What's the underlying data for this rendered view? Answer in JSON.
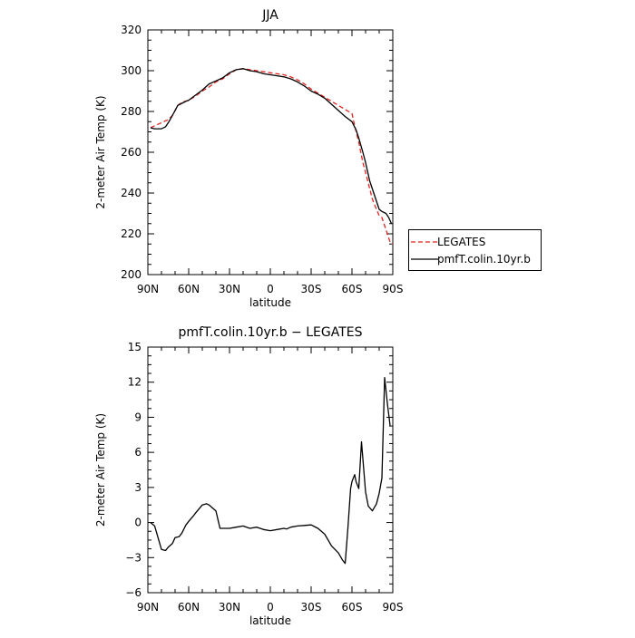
{
  "chart_data": [
    {
      "type": "line",
      "title": "JJA",
      "xlabel": "latitude",
      "ylabel": "2-meter Air Temp (K)",
      "xlim": [
        90,
        -90
      ],
      "ylim": [
        200,
        320
      ],
      "x_ticks": [
        90,
        60,
        30,
        0,
        -30,
        -60,
        -90
      ],
      "x_tick_labels": [
        "90N",
        "60N",
        "30N",
        "0",
        "30S",
        "60S",
        "90S"
      ],
      "y_ticks": [
        200,
        220,
        240,
        260,
        280,
        300,
        320
      ],
      "y_tick_labels": [
        "200",
        "220",
        "240",
        "260",
        "280",
        "300",
        "320"
      ],
      "legend_position": "right",
      "series": [
        {
          "name": "LEGATES",
          "color": "#e8231e",
          "dash": "dashed",
          "x": [
            88,
            85,
            80,
            75,
            72,
            70,
            68,
            65,
            60,
            55,
            50,
            45,
            40,
            35,
            30,
            25,
            20,
            15,
            10,
            5,
            0,
            -5,
            -10,
            -15,
            -20,
            -25,
            -30,
            -35,
            -40,
            -45,
            -50,
            -55,
            -60,
            -62,
            -65,
            -68,
            -70,
            -75,
            -78,
            -80,
            -82,
            -85,
            -88,
            -90
          ],
          "y": [
            272,
            273,
            274.5,
            276,
            278,
            280.5,
            283,
            284.5,
            285.5,
            287.5,
            290,
            292,
            294.5,
            296,
            298.5,
            300.5,
            301,
            300.5,
            300,
            299.5,
            299,
            298.5,
            298,
            297,
            295.5,
            293.5,
            291,
            289,
            287,
            285,
            283,
            281,
            279,
            273,
            265,
            255,
            250,
            237,
            232,
            229,
            228,
            222,
            216,
            215
          ]
        },
        {
          "name": "pmfT.colin.10yr.b",
          "color": "#000000",
          "dash": "solid",
          "x": [
            88,
            85,
            80,
            77,
            75,
            72,
            70,
            68,
            65,
            62,
            60,
            55,
            50,
            45,
            40,
            35,
            30,
            25,
            20,
            15,
            10,
            5,
            0,
            -5,
            -10,
            -15,
            -20,
            -25,
            -30,
            -35,
            -40,
            -45,
            -50,
            -55,
            -60,
            -63,
            -65,
            -68,
            -70,
            -73,
            -75,
            -78,
            -80,
            -82,
            -85,
            -87,
            -89
          ],
          "y": [
            272,
            271.5,
            271.5,
            272.5,
            274.5,
            278,
            280.5,
            283,
            284,
            285,
            285.5,
            288,
            290.5,
            293.5,
            295,
            296.5,
            299,
            300.5,
            301,
            300,
            299.5,
            298.5,
            298,
            297.5,
            297,
            296,
            294.5,
            292.5,
            290,
            288.5,
            286.5,
            283.5,
            280.5,
            277.5,
            275,
            271,
            267,
            260,
            255,
            246,
            242,
            236,
            232,
            231,
            230,
            228,
            225
          ]
        }
      ]
    },
    {
      "type": "line",
      "title": "pmfT.colin.10yr.b − LEGATES",
      "xlabel": "latitude",
      "ylabel": "2-meter Air Temp (K)",
      "xlim": [
        90,
        -90
      ],
      "ylim": [
        -6,
        15
      ],
      "x_ticks": [
        90,
        60,
        30,
        0,
        -30,
        -60,
        -90
      ],
      "x_tick_labels": [
        "90N",
        "60N",
        "30N",
        "0",
        "30S",
        "60S",
        "90S"
      ],
      "y_ticks": [
        -6,
        -3,
        0,
        3,
        6,
        9,
        12,
        15
      ],
      "y_tick_labels": [
        "−6",
        "−3",
        "0",
        "3",
        "6",
        "9",
        "12",
        "15"
      ],
      "series": [
        {
          "color": "#000000",
          "dash": "solid",
          "x": [
            88,
            85,
            80,
            77,
            75,
            72,
            70,
            67,
            65,
            62,
            60,
            57,
            55,
            50,
            47,
            45,
            42,
            40,
            37,
            35,
            30,
            25,
            20,
            15,
            10,
            5,
            0,
            -5,
            -10,
            -12,
            -15,
            -20,
            -25,
            -30,
            -35,
            -40,
            -45,
            -50,
            -53,
            -55,
            -57,
            -59,
            -60,
            -62,
            -63,
            -65,
            -67,
            -70,
            -72,
            -75,
            -78,
            -80,
            -82,
            -84,
            -86,
            -88
          ],
          "y": [
            0,
            -0.3,
            -2.3,
            -2.4,
            -2.1,
            -1.8,
            -1.3,
            -1.2,
            -0.9,
            -0.2,
            0.1,
            0.5,
            0.8,
            1.5,
            1.6,
            1.5,
            1.2,
            1.0,
            -0.5,
            -0.5,
            -0.5,
            -0.4,
            -0.3,
            -0.5,
            -0.4,
            -0.6,
            -0.7,
            -0.6,
            -0.5,
            -0.55,
            -0.4,
            -0.3,
            -0.25,
            -0.2,
            -0.5,
            -1.0,
            -2.0,
            -2.6,
            -3.2,
            -3.5,
            -0.5,
            2.9,
            3.5,
            4.1,
            3.5,
            2.9,
            6.9,
            2.6,
            1.4,
            1.0,
            1.6,
            2.5,
            3.8,
            12.4,
            10.2,
            8.3
          ]
        }
      ]
    }
  ]
}
